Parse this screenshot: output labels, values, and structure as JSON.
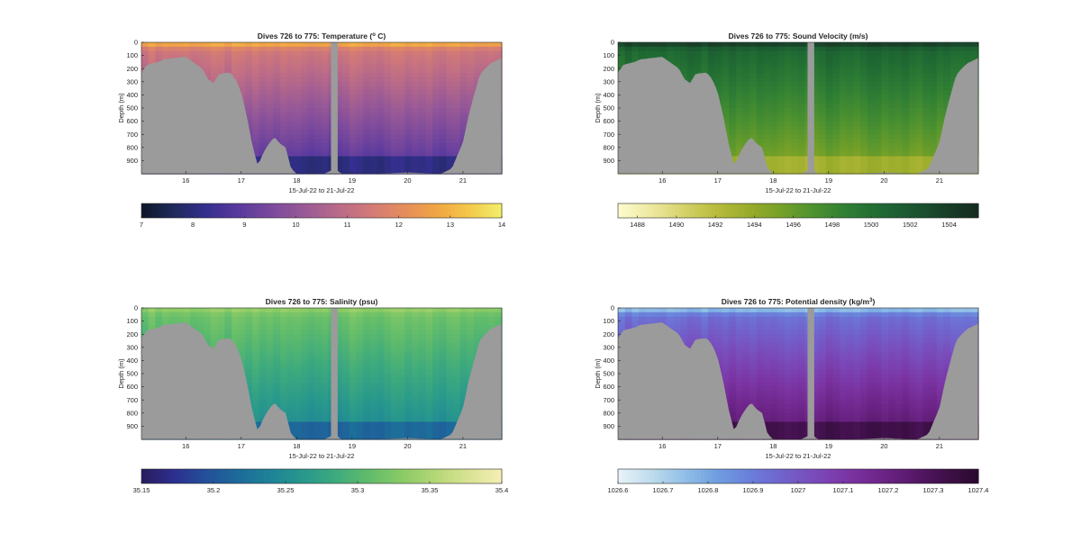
{
  "figure": {
    "background": "#ffffff",
    "land_color": "#9b9b9b"
  },
  "chart_data": [
    {
      "id": "temperature",
      "type": "heatmap",
      "title": "Dives 726 to 775: Temperature",
      "title_unit_suffix": " C)",
      "title_unit_prefix": " (",
      "title_sup": "o",
      "xlabel": "15-Jul-22 to 21-Jul-22",
      "ylabel": "Depth (m)",
      "x_unit": "day of July 2022",
      "xlim": [
        15.2,
        21.7
      ],
      "ylim": [
        0,
        1000
      ],
      "y_reversed": true,
      "xticks": [
        16,
        17,
        18,
        19,
        20,
        21
      ],
      "yticks": [
        0,
        100,
        200,
        300,
        400,
        500,
        600,
        700,
        800,
        900
      ],
      "colorbar": {
        "min": 7,
        "max": 14,
        "ticks": [
          7,
          8,
          9,
          10,
          11,
          12,
          13,
          14
        ],
        "colormap": [
          "#0d1526",
          "#1e2a5c",
          "#352f8f",
          "#5a3a9e",
          "#7c4a9c",
          "#9a5a96",
          "#b96a88",
          "#d27a78",
          "#e58c5c",
          "#f0a544",
          "#f4c84a",
          "#f0f06a"
        ]
      },
      "surface_value": 13.2,
      "deep_value": 7.8,
      "mid_value": 9.6
    },
    {
      "id": "sound_velocity",
      "type": "heatmap",
      "title": "Dives 726 to 775: Sound Velocity (m/s)",
      "xlabel": "15-Jul-22 to 21-Jul-22",
      "ylabel": "Depth (m)",
      "x_unit": "day of July 2022",
      "xlim": [
        15.2,
        21.7
      ],
      "ylim": [
        0,
        1000
      ],
      "y_reversed": true,
      "xticks": [
        16,
        17,
        18,
        19,
        20,
        21
      ],
      "yticks": [
        0,
        100,
        200,
        300,
        400,
        500,
        600,
        700,
        800,
        900
      ],
      "colorbar": {
        "min": 1487,
        "max": 1505.5,
        "ticks": [
          1488,
          1490,
          1492,
          1494,
          1496,
          1498,
          1500,
          1502,
          1504
        ],
        "colormap": [
          "#fdfbd0",
          "#eee9a0",
          "#d5d26a",
          "#b8bb3c",
          "#98ab2a",
          "#74a028",
          "#4c9130",
          "#2f7e34",
          "#1f6a33",
          "#1b5530",
          "#183f29",
          "#142a1e"
        ]
      },
      "surface_value": 1504.5,
      "deep_value": 1492.5,
      "mid_value": 1497
    },
    {
      "id": "salinity",
      "type": "heatmap",
      "title": "Dives 726 to 775: Salinity (psu)",
      "xlabel": "15-Jul-22 to 21-Jul-22",
      "ylabel": "Depth (m)",
      "x_unit": "day of July 2022",
      "xlim": [
        15.2,
        21.7
      ],
      "ylim": [
        0,
        1000
      ],
      "y_reversed": true,
      "xticks": [
        16,
        17,
        18,
        19,
        20,
        21
      ],
      "yticks": [
        0,
        100,
        200,
        300,
        400,
        500,
        600,
        700,
        800,
        900
      ],
      "colorbar": {
        "min": 35.15,
        "max": 35.4,
        "ticks": [
          35.15,
          35.2,
          35.25,
          35.3,
          35.35,
          35.4
        ],
        "colormap": [
          "#2a1b5e",
          "#2c2f8e",
          "#23509a",
          "#1d6c9a",
          "#1e8496",
          "#29998c",
          "#40ab7c",
          "#63bd6a",
          "#8ccb66",
          "#b5d777",
          "#d9e394",
          "#f4efb4"
        ]
      },
      "surface_value": 35.34,
      "deep_value": 35.2,
      "mid_value": 35.29
    },
    {
      "id": "potential_density",
      "type": "heatmap",
      "title": "Dives 726 to 775: Potential density (kg/m",
      "title_sup": "3",
      "title_unit_suffix": ")",
      "xlabel": "15-Jul-22 to 21-Jul-22",
      "ylabel": "Depth (m)",
      "x_unit": "day of July 2022",
      "xlim": [
        15.2,
        21.7
      ],
      "ylim": [
        0,
        1000
      ],
      "y_reversed": true,
      "xticks": [
        16,
        17,
        18,
        19,
        20,
        21
      ],
      "yticks": [
        0,
        100,
        200,
        300,
        400,
        500,
        600,
        700,
        800,
        900
      ],
      "colorbar": {
        "min": 1026.6,
        "max": 1027.4,
        "ticks": [
          1026.6,
          1026.7,
          1026.8,
          1026.9,
          1027,
          1027.1,
          1027.2,
          1027.3,
          1027.4
        ],
        "colormap": [
          "#e8f3f7",
          "#bfdced",
          "#93c0e6",
          "#6f9fe0",
          "#6a7fda",
          "#7163cc",
          "#7a4bba",
          "#7b35a4",
          "#6e2589",
          "#58196b",
          "#3f1049",
          "#2a0a2e"
        ]
      },
      "surface_value": 1026.7,
      "deep_value": 1027.35,
      "mid_value": 1027.15
    }
  ],
  "bathymetry": {
    "x": [
      15.2,
      15.3,
      15.5,
      15.6,
      15.8,
      16.0,
      16.1,
      16.3,
      16.4,
      16.5,
      16.6,
      16.8,
      16.9,
      17.0,
      17.1,
      17.2,
      17.3,
      17.4,
      17.5,
      17.6,
      17.7,
      17.8,
      17.9,
      18.0,
      18.5,
      18.7,
      18.8,
      19.0,
      19.5,
      20.0,
      20.5,
      20.6,
      20.8,
      20.9,
      21.0,
      21.1,
      21.2,
      21.3,
      21.4,
      21.5,
      21.6,
      21.7
    ],
    "depth": [
      230,
      170,
      150,
      130,
      120,
      110,
      140,
      200,
      280,
      310,
      240,
      230,
      280,
      380,
      560,
      780,
      940,
      840,
      770,
      720,
      770,
      800,
      960,
      1000,
      1000,
      960,
      1000,
      1000,
      1000,
      990,
      1000,
      1000,
      960,
      860,
      760,
      560,
      400,
      250,
      200,
      160,
      140,
      120
    ]
  },
  "gap": {
    "x0": 18.62,
    "x1": 18.74
  }
}
